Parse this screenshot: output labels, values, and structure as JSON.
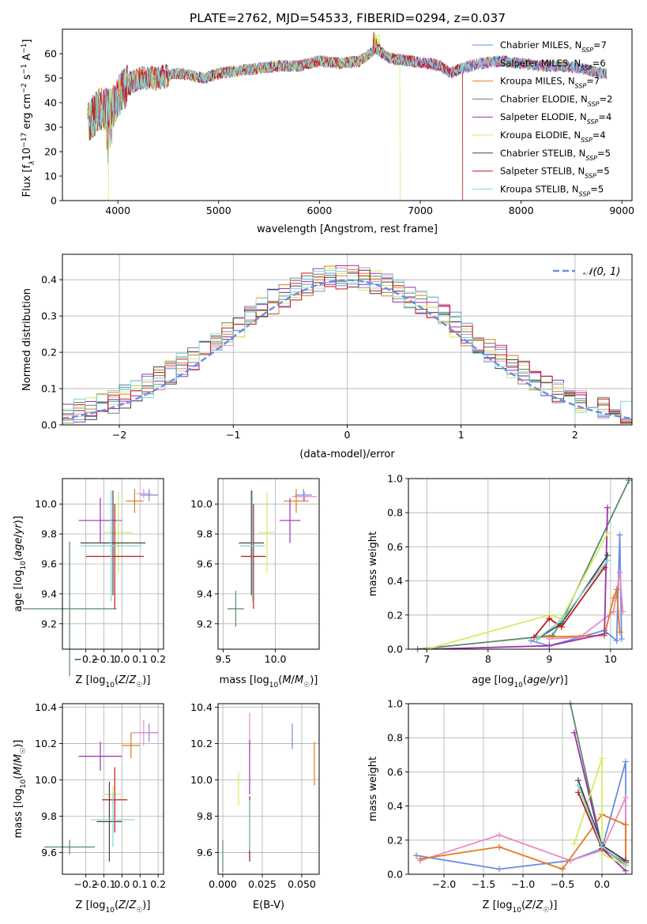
{
  "figure_title": "PLATE=2762, MJD=54533, FIBERID=0294, z=0.037",
  "legend": [
    {
      "label": "Chabrier MILES, N",
      "n": "7",
      "color": "#6a8ee0"
    },
    {
      "label": "Salpeter MILES, N",
      "n": "6",
      "color": "#e88ac4"
    },
    {
      "label": "Kroupa MILES, N",
      "n": "7",
      "color": "#e07b22"
    },
    {
      "label": "Chabrier ELODIE, N",
      "n": "2",
      "color": "#5a8a66"
    },
    {
      "label": "Salpeter ELODIE, N",
      "n": "4",
      "color": "#9b30b0"
    },
    {
      "label": "Kroupa ELODIE, N",
      "n": "4",
      "color": "#d4ec60"
    },
    {
      "label": "Chabrier STELIB, N",
      "n": "5",
      "color": "#444444"
    },
    {
      "label": "Salpeter STELIB, N",
      "n": "5",
      "color": "#c01a1a"
    },
    {
      "label": "Kroupa STELIB, N",
      "n": "5",
      "color": "#7fd6d8"
    }
  ],
  "legend_sub": "SSP",
  "chart_data": [
    {
      "id": "spectrum",
      "type": "line",
      "xlabel": "wavelength [Angstrom, rest frame]",
      "ylabel": "Flux [f",
      "ylabel_parts": {
        "a": "Flux [f",
        "b": "λ",
        "c": "10",
        "d": "−17",
        "e": " erg cm",
        "f": "−2",
        "g": " s",
        "h": "−1",
        "i": " A",
        "j": "−1",
        "k": "]"
      },
      "xlim": [
        3450,
        9100
      ],
      "ylim": [
        0,
        70
      ],
      "xticks": [
        4000,
        5000,
        6000,
        7000,
        8000,
        9000
      ],
      "yticks": [
        0,
        10,
        20,
        30,
        40,
        50,
        60
      ],
      "continuum": [
        [
          3700,
          31
        ],
        [
          3800,
          37
        ],
        [
          3950,
          38
        ],
        [
          4050,
          46
        ],
        [
          4200,
          50
        ],
        [
          4400,
          50
        ],
        [
          4600,
          52
        ],
        [
          4860,
          50
        ],
        [
          5000,
          52
        ],
        [
          5200,
          53
        ],
        [
          5400,
          54
        ],
        [
          5600,
          55
        ],
        [
          5800,
          55
        ],
        [
          6000,
          57
        ],
        [
          6200,
          56
        ],
        [
          6400,
          57
        ],
        [
          6563,
          62
        ],
        [
          6700,
          58
        ],
        [
          6900,
          57
        ],
        [
          7100,
          56
        ],
        [
          7200,
          55
        ],
        [
          7300,
          52
        ],
        [
          7400,
          54
        ],
        [
          7600,
          56
        ],
        [
          7800,
          57
        ],
        [
          8000,
          56
        ],
        [
          8200,
          55
        ],
        [
          8400,
          55
        ],
        [
          8600,
          54
        ],
        [
          8800,
          52
        ]
      ],
      "truncations": [
        {
          "series": 5,
          "start": 3700,
          "end": 6800
        },
        {
          "series": 7,
          "start": 3700,
          "end": 7420
        }
      ]
    },
    {
      "id": "residuals",
      "type": "histogram",
      "xlabel": "(data-model)/error",
      "ylabel": "Normed distribution",
      "xlim": [
        -2.5,
        2.5
      ],
      "ylim": [
        0,
        0.47
      ],
      "xticks": [
        -2,
        -1,
        0,
        1,
        2
      ],
      "yticks": [
        0.0,
        0.1,
        0.2,
        0.3,
        0.4
      ],
      "reference_label": "𝒩(0, 1)",
      "reference_color": "#6a8ee0",
      "bin_width": 0.1
    },
    {
      "id": "age_vs_Z",
      "type": "scatter",
      "xlabel": "Z [log10(Z/Z☉)]",
      "ylabel": "age  [log10(age/yr)]",
      "xlim": [
        -0.33,
        0.23
      ],
      "ylim": [
        9.03,
        10.17
      ],
      "xticks": [
        -0.2,
        -0.1,
        0.0,
        0.1,
        0.2
      ],
      "yticks": [
        9.2,
        9.4,
        9.6,
        9.8,
        10.0
      ],
      "points": [
        {
          "s": 0,
          "x": 0.15,
          "y": 10.06,
          "xerr": 0.05,
          "yerr": 0.04
        },
        {
          "s": 1,
          "x": 0.12,
          "y": 10.07,
          "xerr": 0.04,
          "yerr": 0.03
        },
        {
          "s": 2,
          "x": 0.07,
          "y": 10.02,
          "xerr": 0.05,
          "yerr": 0.08
        },
        {
          "s": 3,
          "x": -0.29,
          "y": 9.3,
          "xerr": 0.26,
          "yerr": 0.45
        },
        {
          "s": 4,
          "x": -0.12,
          "y": 9.89,
          "xerr": 0.12,
          "yerr": 0.15
        },
        {
          "s": 5,
          "x": -0.02,
          "y": 9.81,
          "xerr": 0.08,
          "yerr": 0.27
        },
        {
          "s": 6,
          "x": -0.05,
          "y": 9.74,
          "xerr": 0.18,
          "yerr": 0.35
        },
        {
          "s": 7,
          "x": -0.04,
          "y": 9.65,
          "xerr": 0.16,
          "yerr": 0.35
        },
        {
          "s": 8,
          "x": -0.06,
          "y": 9.72,
          "xerr": 0.17,
          "yerr": 0.37
        }
      ]
    },
    {
      "id": "age_vs_mass",
      "type": "scatter",
      "xlabel": "mass [log10(M/M☉)]",
      "ylabel": "",
      "xlim": [
        9.45,
        10.42
      ],
      "ylim": [
        9.03,
        10.17
      ],
      "xticks": [
        9.5,
        10.0
      ],
      "yticks": [
        9.2,
        9.4,
        9.6,
        9.8,
        10.0
      ],
      "points": [
        {
          "s": 0,
          "x": 10.27,
          "y": 10.06,
          "xerr": 0.08,
          "yerr": 0.04
        },
        {
          "s": 1,
          "x": 10.28,
          "y": 10.05,
          "xerr": 0.12,
          "yerr": 0.03
        },
        {
          "s": 2,
          "x": 10.2,
          "y": 10.02,
          "xerr": 0.12,
          "yerr": 0.08
        },
        {
          "s": 3,
          "x": 9.62,
          "y": 9.3,
          "xerr": 0.08,
          "yerr": 0.12
        },
        {
          "s": 4,
          "x": 10.14,
          "y": 9.89,
          "xerr": 0.1,
          "yerr": 0.15
        },
        {
          "s": 5,
          "x": 9.92,
          "y": 9.81,
          "xerr": 0.08,
          "yerr": 0.27
        },
        {
          "s": 6,
          "x": 9.77,
          "y": 9.74,
          "xerr": 0.12,
          "yerr": 0.35
        },
        {
          "s": 7,
          "x": 9.79,
          "y": 9.65,
          "xerr": 0.12,
          "yerr": 0.35
        },
        {
          "s": 8,
          "x": 9.78,
          "y": 9.72,
          "xerr": 0.12,
          "yerr": 0.37
        }
      ]
    },
    {
      "id": "weight_vs_age",
      "type": "line",
      "xlabel": "age  [log10(age/yr)]",
      "ylabel": "mass weight",
      "xlim": [
        6.7,
        10.35
      ],
      "ylim": [
        0,
        1.0
      ],
      "xticks": [
        7,
        8,
        9,
        10
      ],
      "yticks": [
        0.0,
        0.2,
        0.4,
        0.6,
        0.8,
        1.0
      ],
      "series": [
        {
          "s": 3,
          "x": [
            6.85,
            9.05,
            9.2,
            10.3
          ],
          "y": [
            0.0,
            0.08,
            0.16,
            0.99
          ]
        },
        {
          "s": 0,
          "x": [
            8.7,
            9.0,
            9.9,
            10.1,
            10.15,
            10.18
          ],
          "y": [
            0.05,
            0.02,
            0.11,
            0.05,
            0.67,
            0.06
          ]
        },
        {
          "s": 1,
          "x": [
            9.0,
            9.5,
            10.05,
            10.15,
            10.2
          ],
          "y": [
            0.06,
            0.07,
            0.22,
            0.45,
            0.22
          ]
        },
        {
          "s": 2,
          "x": [
            8.8,
            9.9,
            10.05,
            10.1,
            10.15
          ],
          "y": [
            0.07,
            0.08,
            0.3,
            0.35,
            0.1
          ]
        },
        {
          "s": 4,
          "x": [
            7.0,
            9.0,
            9.9,
            9.95
          ],
          "y": [
            0.0,
            0.02,
            0.09,
            0.83
          ]
        },
        {
          "s": 5,
          "x": [
            7.0,
            9.0,
            9.2,
            9.95
          ],
          "y": [
            0.0,
            0.2,
            0.18,
            0.68
          ]
        },
        {
          "s": 6,
          "x": [
            8.8,
            9.2,
            9.95
          ],
          "y": [
            0.06,
            0.15,
            0.55
          ]
        },
        {
          "s": 7,
          "x": [
            8.75,
            9.0,
            9.2,
            9.9
          ],
          "y": [
            0.07,
            0.18,
            0.13,
            0.48
          ]
        },
        {
          "s": 8,
          "x": [
            8.8,
            9.2,
            9.95
          ],
          "y": [
            0.06,
            0.17,
            0.52
          ]
        }
      ]
    },
    {
      "id": "mass_vs_Z",
      "type": "scatter",
      "xlabel": "Z [log10(Z/Z☉)]",
      "ylabel": "mass [log10(M/M☉)]",
      "xlim": [
        -0.33,
        0.23
      ],
      "ylim": [
        9.48,
        10.42
      ],
      "xticks": [
        -0.2,
        -0.1,
        0.0,
        0.1,
        0.2
      ],
      "yticks": [
        9.6,
        9.8,
        10.0,
        10.2,
        10.4
      ],
      "points": [
        {
          "s": 0,
          "x": 0.15,
          "y": 10.26,
          "xerr": 0.05,
          "yerr": 0.05
        },
        {
          "s": 1,
          "x": 0.12,
          "y": 10.26,
          "xerr": 0.07,
          "yerr": 0.07
        },
        {
          "s": 2,
          "x": 0.05,
          "y": 10.19,
          "xerr": 0.05,
          "yerr": 0.07
        },
        {
          "s": 3,
          "x": -0.29,
          "y": 9.63,
          "xerr": 0.14,
          "yerr": 0.04
        },
        {
          "s": 4,
          "x": -0.12,
          "y": 10.13,
          "xerr": 0.12,
          "yerr": 0.08
        },
        {
          "s": 5,
          "x": -0.05,
          "y": 9.92,
          "xerr": 0.05,
          "yerr": 0.05
        },
        {
          "s": 6,
          "x": -0.07,
          "y": 9.77,
          "xerr": 0.07,
          "yerr": 0.22
        },
        {
          "s": 7,
          "x": -0.04,
          "y": 9.89,
          "xerr": 0.07,
          "yerr": 0.18
        },
        {
          "s": 8,
          "x": -0.05,
          "y": 9.78,
          "xerr": 0.12,
          "yerr": 0.15
        }
      ]
    },
    {
      "id": "mass_vs_ebv",
      "type": "scatter",
      "xlabel": "E(B-V)",
      "ylabel": "",
      "xlim": [
        -0.003,
        0.061
      ],
      "ylim": [
        9.48,
        10.42
      ],
      "xticks": [
        0.0,
        0.025,
        0.05
      ],
      "yticks": [
        9.6,
        9.8,
        10.0,
        10.2,
        10.4
      ],
      "points": [
        {
          "s": 0,
          "x": 0.044,
          "y": 10.24,
          "xerr": 0,
          "yerr": 0.07
        },
        {
          "s": 1,
          "x": 0.017,
          "y": 10.28,
          "xerr": 0,
          "yerr": 0.09
        },
        {
          "s": 2,
          "x": 0.058,
          "y": 10.09,
          "xerr": 0,
          "yerr": 0.12
        },
        {
          "s": 3,
          "x": 0.0,
          "y": 9.58,
          "xerr": 0,
          "yerr": 0.09
        },
        {
          "s": 4,
          "x": 0.017,
          "y": 10.07,
          "xerr": 0,
          "yerr": 0.15
        },
        {
          "s": 5,
          "x": 0.01,
          "y": 9.95,
          "xerr": 0,
          "yerr": 0.09
        },
        {
          "s": 6,
          "x": 0.017,
          "y": 9.73,
          "xerr": 0,
          "yerr": 0.18
        },
        {
          "s": 7,
          "x": 0.017,
          "y": 9.73,
          "xerr": 0,
          "yerr": 0.16
        },
        {
          "s": 8,
          "x": 0.017,
          "y": 9.75,
          "xerr": 0,
          "yerr": 0.14
        }
      ]
    },
    {
      "id": "weight_vs_Z",
      "type": "line",
      "xlabel": "Z [log10(Z/Z☉)]",
      "ylabel": "mass weight",
      "xlim": [
        -2.45,
        0.38
      ],
      "ylim": [
        0,
        1.0
      ],
      "xticks": [
        -2.0,
        -1.5,
        -1.0,
        -0.5,
        0.0
      ],
      "yticks": [
        0.0,
        0.2,
        0.4,
        0.6,
        0.8,
        1.0
      ],
      "series": [
        {
          "s": 3,
          "x": [
            -0.4,
            0.0,
            0.3
          ],
          "y": [
            1.0,
            0.16,
            0.05
          ]
        },
        {
          "s": 0,
          "x": [
            -2.35,
            -1.3,
            -0.4,
            0.0,
            0.3,
            0.3
          ],
          "y": [
            0.11,
            0.03,
            0.08,
            0.15,
            0.66,
            0.05
          ]
        },
        {
          "s": 1,
          "x": [
            -2.3,
            -1.3,
            -0.4,
            0.0,
            0.3,
            0.3
          ],
          "y": [
            0.08,
            0.23,
            0.08,
            0.14,
            0.45,
            0.07
          ]
        },
        {
          "s": 2,
          "x": [
            -2.3,
            -1.3,
            -0.5,
            0.0,
            0.3,
            0.3
          ],
          "y": [
            0.09,
            0.16,
            0.03,
            0.35,
            0.29,
            0.07
          ]
        },
        {
          "s": 4,
          "x": [
            -0.35,
            0.0,
            0.3
          ],
          "y": [
            0.83,
            0.15,
            0.02
          ]
        },
        {
          "s": 5,
          "x": [
            -0.35,
            0.0,
            0.0,
            0.3
          ],
          "y": [
            0.18,
            0.68,
            0.12,
            0.05
          ]
        },
        {
          "s": 6,
          "x": [
            -0.3,
            0.0,
            0.3
          ],
          "y": [
            0.55,
            0.17,
            0.08
          ]
        },
        {
          "s": 7,
          "x": [
            -0.3,
            0.0,
            0.3
          ],
          "y": [
            0.48,
            0.15,
            0.07
          ]
        },
        {
          "s": 8,
          "x": [
            -0.3,
            0.0,
            0.3
          ],
          "y": [
            0.52,
            0.16,
            0.06
          ]
        }
      ]
    }
  ]
}
